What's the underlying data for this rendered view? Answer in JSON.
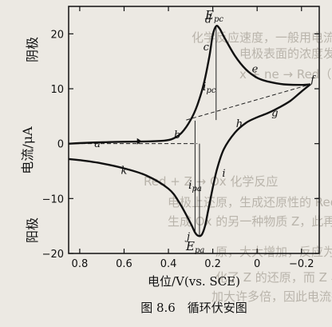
{
  "background_text": [
    "化学反应速度，一般用电流表示，以",
    "电极表面的浓度发生变化。在下列反应中",
    "x + ne → Red（电极反应）",
    "Red + Z → Ox 化学反应",
    "电极上还原，生成还原性的 Red，在两种",
    "生成 Ox 的另一种物质 Z，此再生的 O",
    "原，大大增加，反应为催化电流，",
    "化了 Z 的还原，而 Z 与催化剂 Ox 的",
    "加大许多倍，因此电流很灵敏度。"
  ],
  "labels": {
    "y_axis": "电流/μA",
    "cathodic": "阴极",
    "anodic": "阳极",
    "x_axis": "电位/V(vs. SCE)",
    "caption": "图 8.6　循环伏安图",
    "E_pc": "E",
    "E_pc_sub": "pc",
    "E_pa": "E",
    "E_pa_sub": "pa",
    "i_pc": "i",
    "i_pc_sub": "pc",
    "i_pa": "i",
    "i_pa_sub": "pa"
  },
  "chart_data": {
    "type": "line",
    "title": "",
    "xlabel": "电位/V(vs. SCE)",
    "ylabel": "电流/μA",
    "xlim": [
      0.85,
      -0.28
    ],
    "ylim": [
      -20,
      25
    ],
    "x_ticks": [
      0.8,
      0.6,
      0.4,
      0.2,
      0,
      -0.2
    ],
    "x_tick_labels": [
      "0.8",
      "0.6",
      "0.4",
      "0.2",
      "0",
      "−0.2"
    ],
    "y_ticks": [
      20,
      10,
      0,
      -10,
      -20
    ],
    "y_tick_labels": [
      "20",
      "10",
      "0",
      "−10",
      "−20"
    ],
    "series": [
      {
        "values_xy": [
          [
            0.85,
            0.0
          ],
          [
            0.8,
            0.1
          ],
          [
            0.7,
            0.25
          ],
          [
            0.6,
            0.35
          ],
          [
            0.5,
            0.4
          ],
          [
            0.42,
            0.55
          ],
          [
            0.38,
            0.9
          ],
          [
            0.34,
            2.0
          ],
          [
            0.3,
            4.3
          ],
          [
            0.27,
            7.0
          ],
          [
            0.24,
            11.0
          ],
          [
            0.215,
            16.0
          ],
          [
            0.2,
            19.8
          ],
          [
            0.185,
            21.4
          ],
          [
            0.17,
            21.0
          ],
          [
            0.15,
            19.5
          ],
          [
            0.1,
            16.0
          ],
          [
            0.05,
            13.5
          ],
          [
            0.0,
            12.0
          ],
          [
            -0.05,
            11.3
          ],
          [
            -0.12,
            10.8
          ],
          [
            -0.2,
            10.7
          ],
          [
            -0.24,
            10.8
          ]
        ]
      },
      {
        "values_xy": [
          [
            -0.24,
            10.8
          ],
          [
            -0.2,
            9.5
          ],
          [
            -0.15,
            7.8
          ],
          [
            -0.1,
            6.6
          ],
          [
            -0.05,
            5.6
          ],
          [
            0.0,
            4.8
          ],
          [
            0.05,
            3.8
          ],
          [
            0.1,
            2.0
          ],
          [
            0.15,
            -1.0
          ],
          [
            0.18,
            -4.5
          ],
          [
            0.2,
            -8.0
          ],
          [
            0.22,
            -12.0
          ],
          [
            0.235,
            -15.0
          ],
          [
            0.25,
            -16.6
          ],
          [
            0.265,
            -16.8
          ],
          [
            0.28,
            -16.2
          ],
          [
            0.3,
            -14.5
          ],
          [
            0.35,
            -10.8
          ],
          [
            0.4,
            -8.2
          ],
          [
            0.5,
            -5.8
          ],
          [
            0.6,
            -4.5
          ],
          [
            0.7,
            -3.6
          ],
          [
            0.8,
            -3.0
          ],
          [
            0.85,
            -2.8
          ]
        ]
      }
    ],
    "guides": {
      "baseline_dashed": [
        [
          0.85,
          0.0
        ],
        [
          0.27,
          0.0
        ]
      ],
      "baseline_extension_dashed": [
        [
          0.32,
          4.3
        ],
        [
          -0.24,
          10.8
        ]
      ],
      "vertical_ipc": [
        0.185,
        4.3,
        21.4
      ],
      "vertical_ipa": [
        0.26,
        -16.8,
        0.0
      ],
      "vertical_line2": [
        0.28,
        -16.0,
        4.2
      ]
    },
    "annotations": [
      {
        "text": "a",
        "x": 0.72,
        "y": -0.6
      },
      {
        "text": "b",
        "x": 0.36,
        "y": 1.0
      },
      {
        "text": "c",
        "x": 0.23,
        "y": 17.0
      },
      {
        "text": "d",
        "x": 0.22,
        "y": 22.0
      },
      {
        "text": "e",
        "x": 0.01,
        "y": 13.0
      },
      {
        "text": "f",
        "x": -0.25,
        "y": 11.0
      },
      {
        "text": "g",
        "x": -0.08,
        "y": 5.0
      },
      {
        "text": "h",
        "x": 0.08,
        "y": 3.0
      },
      {
        "text": "i",
        "x": 0.15,
        "y": -6.0
      },
      {
        "text": "j",
        "x": 0.31,
        "y": -17.5
      },
      {
        "text": "k",
        "x": 0.6,
        "y": -5.5
      }
    ]
  }
}
